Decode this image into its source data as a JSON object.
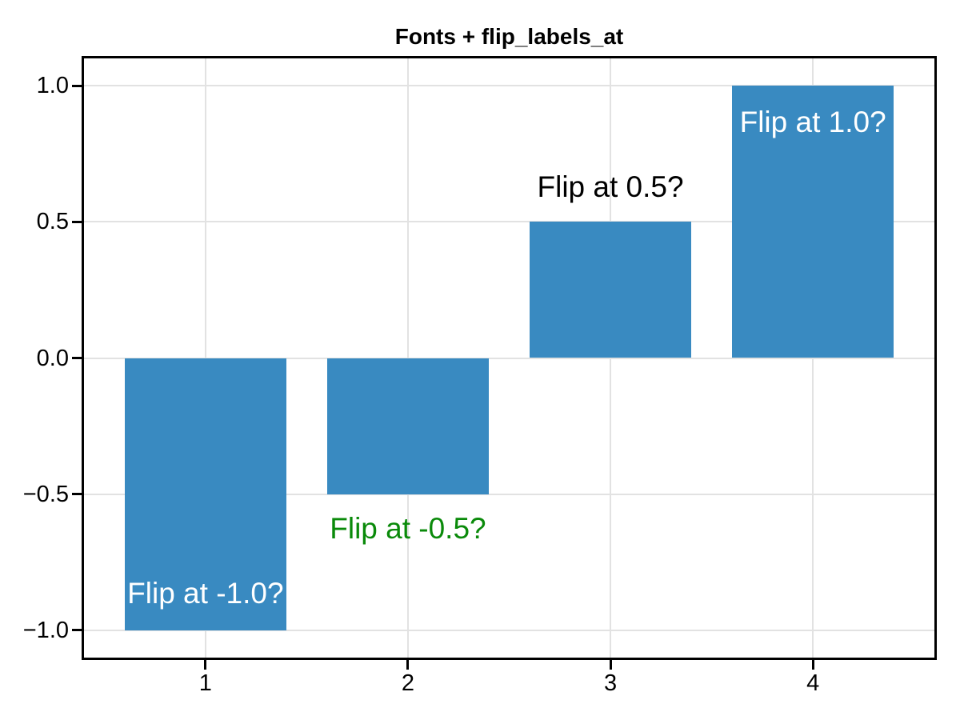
{
  "figure": {
    "background": "#ffffff"
  },
  "chart_data": {
    "type": "bar",
    "title": "Fonts + flip_labels_at",
    "x": [
      1,
      2,
      3,
      4
    ],
    "values": [
      -1.0,
      -0.5,
      0.5,
      1.0
    ],
    "bar_width": 0.8,
    "bar_color": "#398ac1",
    "xlabel": "",
    "ylabel": "",
    "xlim": [
      0.4,
      4.6
    ],
    "ylim": [
      -1.1,
      1.1
    ],
    "grid": true,
    "grid_color": "#e2e2e2",
    "axis_color": "#000000",
    "legend": "none",
    "x_ticks": [
      {
        "v": 1,
        "label": "1"
      },
      {
        "v": 2,
        "label": "2"
      },
      {
        "v": 3,
        "label": "3"
      },
      {
        "v": 4,
        "label": "4"
      }
    ],
    "y_ticks": [
      {
        "v": 1.0,
        "label": "1.0"
      },
      {
        "v": 0.5,
        "label": "0.5"
      },
      {
        "v": 0.0,
        "label": "0.0"
      },
      {
        "v": -0.5,
        "label": "−0.5"
      },
      {
        "v": -1.0,
        "label": "−1.0"
      }
    ],
    "bar_labels": [
      {
        "text": "Flip at -1.0?",
        "color": "#ffffff",
        "placement": "inside-end"
      },
      {
        "text": "Flip at -0.5?",
        "color": "#0a8a0a",
        "placement": "outside-end"
      },
      {
        "text": "Flip at 0.5?",
        "color": "#000000",
        "placement": "outside-end"
      },
      {
        "text": "Flip at 1.0?",
        "color": "#ffffff",
        "placement": "inside-end"
      }
    ]
  }
}
